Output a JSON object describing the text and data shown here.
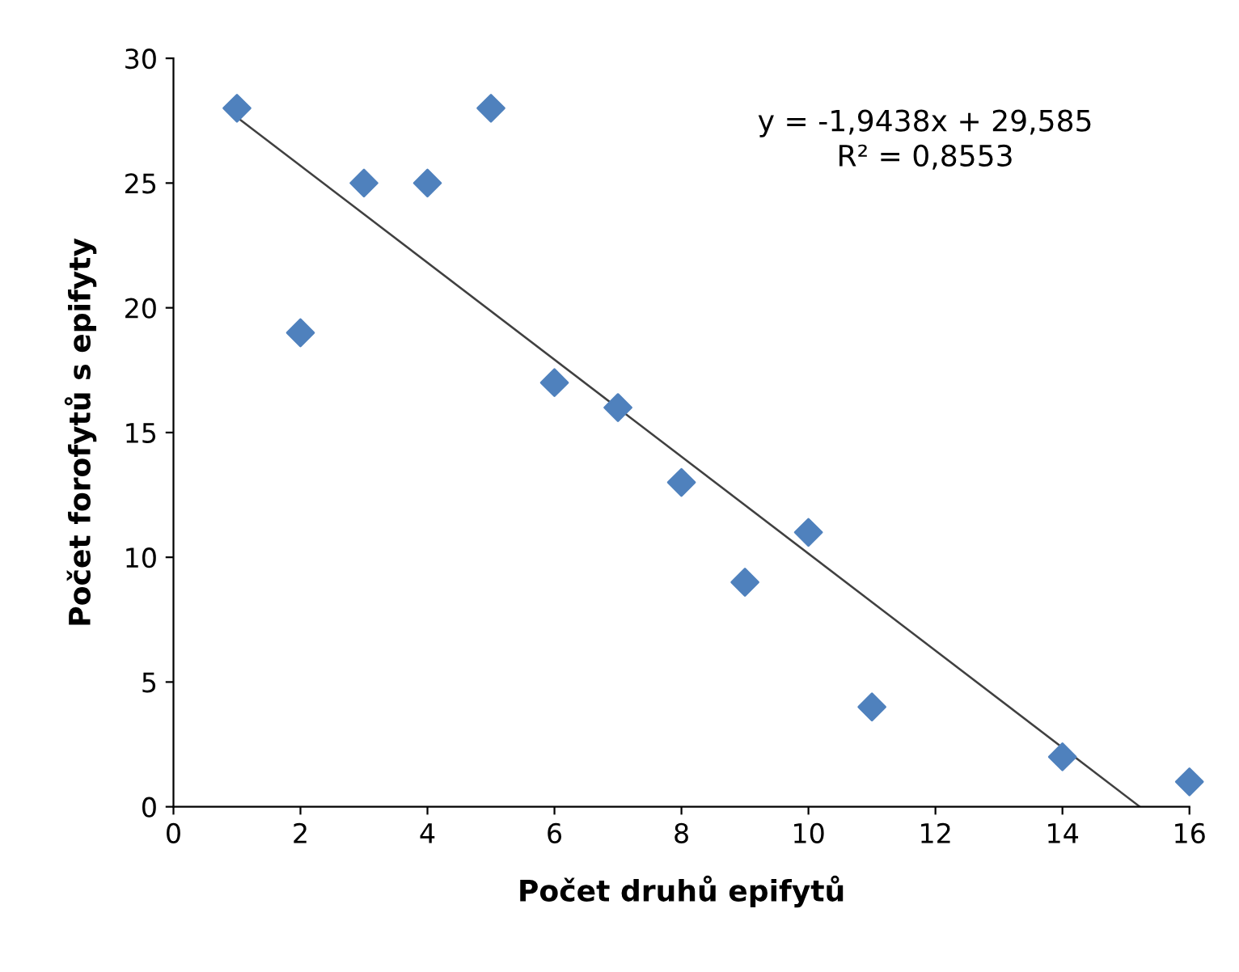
{
  "chart_data": {
    "type": "scatter",
    "xlabel": "Počet druhů epifytů",
    "ylabel": "Počet forofytů s epifyty",
    "series": [
      {
        "color": "#4f81bd",
        "marker": "diamond",
        "x": [
          1,
          2,
          3,
          4,
          5,
          6,
          7,
          8,
          9,
          10,
          11,
          14,
          16
        ],
        "values": [
          28,
          19,
          25,
          25,
          28,
          17,
          16,
          13,
          9,
          11,
          4,
          2,
          1
        ]
      },
      {
        "type": "line",
        "color": "#404040",
        "marker": "none",
        "x": [
          1,
          15.22
        ],
        "values": [
          27.64,
          0
        ]
      }
    ],
    "annotations": [
      "y = -1,9438x + 29,585\nR² = 0,8553"
    ],
    "xlim": [
      0,
      16
    ],
    "xticks": [
      0,
      2,
      4,
      6,
      8,
      10,
      12,
      14,
      16
    ],
    "ylim": [
      0,
      30
    ],
    "yticks": [
      0,
      5,
      10,
      15,
      20,
      25,
      30
    ],
    "grid": false,
    "legend": false
  }
}
